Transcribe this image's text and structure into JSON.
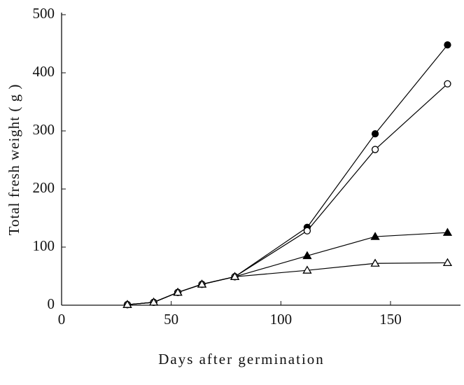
{
  "chart_data": {
    "type": "line",
    "x_label": "Days after germination",
    "y_label": "Total fresh weight ( g )",
    "x": [
      30,
      42,
      53,
      64,
      79,
      112,
      143,
      176
    ],
    "series": [
      {
        "color": "#000000",
        "marker": "circle",
        "filled": true,
        "values": [
          1,
          5,
          22,
          36,
          49,
          134,
          295,
          448
        ]
      },
      {
        "color": "#000000",
        "marker": "circle",
        "filled": false,
        "values": [
          1,
          5,
          22,
          36,
          49,
          128,
          268,
          381
        ]
      },
      {
        "color": "#000000",
        "marker": "triangle",
        "filled": true,
        "values": [
          1,
          5,
          22,
          36,
          49,
          85,
          118,
          125
        ]
      },
      {
        "color": "#000000",
        "marker": "triangle",
        "filled": false,
        "values": [
          1,
          5,
          22,
          36,
          49,
          60,
          72,
          73
        ]
      }
    ],
    "xlim": [
      0,
      180
    ],
    "xticks": [
      0,
      50,
      100,
      150
    ],
    "ylim": [
      0,
      500
    ],
    "yticks": [
      0,
      100,
      200,
      300,
      400,
      500
    ],
    "grid": false
  }
}
